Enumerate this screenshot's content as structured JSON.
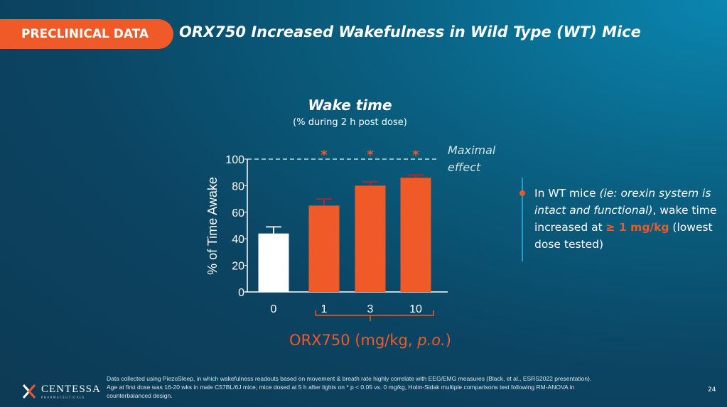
{
  "header": {
    "tag": "PRECLINICAL DATA",
    "title": "ORX750 Increased Wakefulness in Wild Type (WT) Mice"
  },
  "chart_data": {
    "type": "bar",
    "title": "Wake time",
    "subtitle": "(% during 2 h post dose)",
    "ylabel": "% of Time Awake",
    "xlabel": "ORX750 (mg/kg, p.o.)",
    "xlabel_main": "ORX750 (mg/kg, ",
    "xlabel_italic": "p.o.",
    "xlabel_end": ")",
    "categories": [
      "0",
      "1",
      "3",
      "10"
    ],
    "values": [
      44,
      65,
      80,
      86
    ],
    "error_upper": [
      49,
      70,
      83,
      88
    ],
    "significant": [
      false,
      true,
      true,
      true
    ],
    "significance_marker": "*",
    "bar_colors": [
      "#ffffff",
      "#f05a28",
      "#f05a28",
      "#f05a28"
    ],
    "ylim": [
      0,
      100
    ],
    "yticks": [
      "0",
      "20",
      "40",
      "60",
      "80",
      "100"
    ],
    "reference_line": {
      "value": 100,
      "label_line1": "Maximal",
      "label_line2": "effect"
    }
  },
  "bullet": {
    "t1": "In WT mice ",
    "t2": "(ie: orexin system is intact and functional)",
    "t3": ", wake time increased at ",
    "t4": "≥ 1 mg/kg",
    "t5": " (lowest dose tested)"
  },
  "footer": {
    "line1": "Data collected using PiezoSleep, in which wakefulness readouts based on movement & breath rate highly correlate with EEG/EMG measures (Black, et al., ESRS2022 presentation).",
    "line2": "Age at first dose was 16-20  wks in male  C57BL/6J mice; mice dosed at 5 h after lights on * p < 0.05 vs. 0 mg/kg, Holm-Sidak multiple comparisons test following RM-ANOVA in",
    "line3": "counterbalanced design.",
    "page": "24",
    "logo": "CENTESSA",
    "logo_sub": "PHARMACEUTICALS"
  },
  "colors": {
    "accent": "#f05a28"
  }
}
